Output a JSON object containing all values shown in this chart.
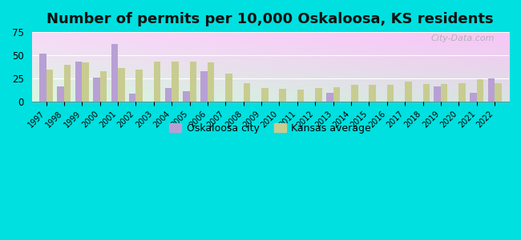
{
  "title": "Number of permits per 10,000 Oskaloosa, KS residents",
  "years": [
    1997,
    1998,
    1999,
    2000,
    2001,
    2002,
    2003,
    2004,
    2005,
    2006,
    2007,
    2008,
    2009,
    2010,
    2011,
    2012,
    2013,
    2014,
    2015,
    2016,
    2017,
    2018,
    2019,
    2020,
    2021,
    2022
  ],
  "oskaloosa": [
    52,
    17,
    43,
    26,
    62,
    9,
    0,
    15,
    11,
    33,
    0,
    0,
    0,
    0,
    0,
    0,
    10,
    0,
    0,
    0,
    0,
    0,
    17,
    0,
    10,
    25
  ],
  "kansas": [
    35,
    40,
    42,
    33,
    36,
    35,
    43,
    43,
    43,
    42,
    30,
    20,
    15,
    14,
    13,
    15,
    16,
    18,
    18,
    18,
    22,
    19,
    19,
    20,
    24,
    20
  ],
  "oskaloosa_color": "#b8a0d4",
  "kansas_color": "#c8cc90",
  "background_outer": "#00e0e0",
  "ylim": [
    0,
    75
  ],
  "yticks": [
    0,
    25,
    50,
    75
  ],
  "title_fontsize": 13,
  "legend_oskaloosa": "Oskaloosa city",
  "legend_kansas": "Kansas average",
  "bar_width": 0.38
}
